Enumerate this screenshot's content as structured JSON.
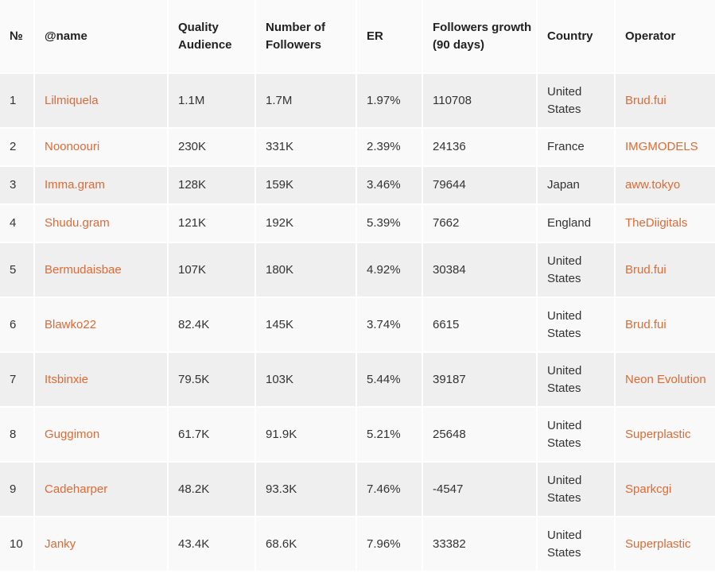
{
  "table": {
    "headers": [
      "№",
      "@name",
      "Quality Audience",
      "Number of Followers",
      "ER",
      "Followers growth (90 days)",
      "Country",
      "Operator"
    ],
    "rows": [
      {
        "num": "1",
        "name": "Lilmiquela",
        "quality": "1.1M",
        "followers": "1.7M",
        "er": "1.97%",
        "growth": "110708",
        "country": "United States",
        "operator": "Brud.fui"
      },
      {
        "num": "2",
        "name": "Noonoouri",
        "quality": "230K",
        "followers": "331K",
        "er": "2.39%",
        "growth": "24136",
        "country": "France",
        "operator": "IMGMODELS"
      },
      {
        "num": "3",
        "name": "Imma.gram",
        "quality": "128K",
        "followers": "159K",
        "er": "3.46%",
        "growth": "79644",
        "country": "Japan",
        "operator": "aww.tokyo"
      },
      {
        "num": "4",
        "name": "Shudu.gram",
        "quality": "121K",
        "followers": "192K",
        "er": "5.39%",
        "growth": "7662",
        "country": "England",
        "operator": "TheDiigitals"
      },
      {
        "num": "5",
        "name": "Bermudaisbae",
        "quality": "107K",
        "followers": "180K",
        "er": "4.92%",
        "growth": "30384",
        "country": "United States",
        "operator": "Brud.fui"
      },
      {
        "num": "6",
        "name": "Blawko22",
        "quality": "82.4K",
        "followers": "145K",
        "er": "3.74%",
        "growth": "6615",
        "country": "United States",
        "operator": "Brud.fui"
      },
      {
        "num": "7",
        "name": "Itsbinxie",
        "quality": "79.5K",
        "followers": "103K",
        "er": "5.44%",
        "growth": "39187",
        "country": "United States",
        "operator": "Neon Evolution"
      },
      {
        "num": "8",
        "name": "Guggimon",
        "quality": "61.7K",
        "followers": "91.9K",
        "er": "5.21%",
        "growth": "25648",
        "country": "United States",
        "operator": "Superplastic"
      },
      {
        "num": "9",
        "name": "Cadeharper",
        "quality": "48.2K",
        "followers": "93.3K",
        "er": "7.46%",
        "growth": "-4547",
        "country": "United States",
        "operator": "Sparkcgi"
      },
      {
        "num": "10",
        "name": "Janky",
        "quality": "43.4K",
        "followers": "68.6K",
        "er": "7.96%",
        "growth": "33382",
        "country": "United States",
        "operator": "Superplastic"
      }
    ]
  },
  "colors": {
    "link": "#e06a34",
    "row_odd": "#efefef",
    "row_even": "#f9f9f9"
  }
}
